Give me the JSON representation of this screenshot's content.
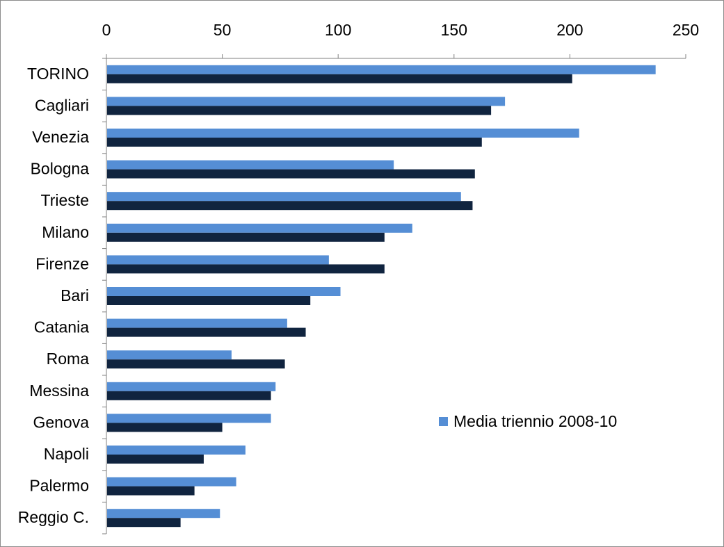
{
  "chart_data": {
    "type": "bar",
    "orientation": "horizontal",
    "title": "",
    "xlabel": "",
    "ylabel": "",
    "xlim": [
      0,
      250
    ],
    "x_ticks": [
      "0",
      "50",
      "100",
      "150",
      "200",
      "250"
    ],
    "axis_position": "top",
    "grid": false,
    "legend_position": "right",
    "categories": [
      "TORINO",
      "Cagliari",
      "Venezia",
      "Bologna",
      "Trieste",
      "Milano",
      "Firenze",
      "Bari",
      "Catania",
      "Roma",
      "Messina",
      "Genova",
      "Napoli",
      "Palermo",
      "Reggio C."
    ],
    "series": [
      {
        "name": "Media triennio 2008-10",
        "color": "#558ed5",
        "values": [
          237,
          172,
          204,
          124,
          153,
          132,
          96,
          101,
          78,
          54,
          73,
          71,
          60,
          56,
          49
        ]
      },
      {
        "color": "#10243f",
        "values": [
          201,
          166,
          162,
          159,
          158,
          120,
          120,
          88,
          86,
          77,
          71,
          50,
          42,
          38,
          32
        ]
      }
    ]
  }
}
